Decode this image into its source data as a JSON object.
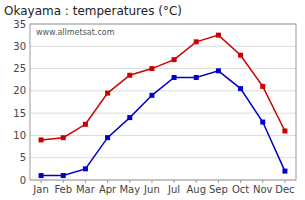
{
  "chart_data": {
    "type": "line",
    "title": "Okayama : temperatures (°C)",
    "categories": [
      "Jan",
      "Feb",
      "Mar",
      "Apr",
      "May",
      "Jun",
      "Jul",
      "Aug",
      "Sep",
      "Oct",
      "Nov",
      "Dec"
    ],
    "series": [
      {
        "color": "#cc0000",
        "marker": "square",
        "values": [
          9,
          9.5,
          12.5,
          19.5,
          23.5,
          25,
          27,
          31,
          32.5,
          28,
          21,
          11
        ]
      },
      {
        "color": "#0000cc",
        "marker": "square",
        "values": [
          1,
          1,
          2.5,
          9.5,
          14,
          19,
          23,
          23,
          24.5,
          20.5,
          13,
          2
        ]
      }
    ],
    "ylim": [
      0,
      35
    ],
    "yticks": [
      0,
      5,
      10,
      15,
      20,
      25,
      30,
      35
    ],
    "grid": true,
    "annotations": [
      "www.allmetsat.com"
    ]
  }
}
